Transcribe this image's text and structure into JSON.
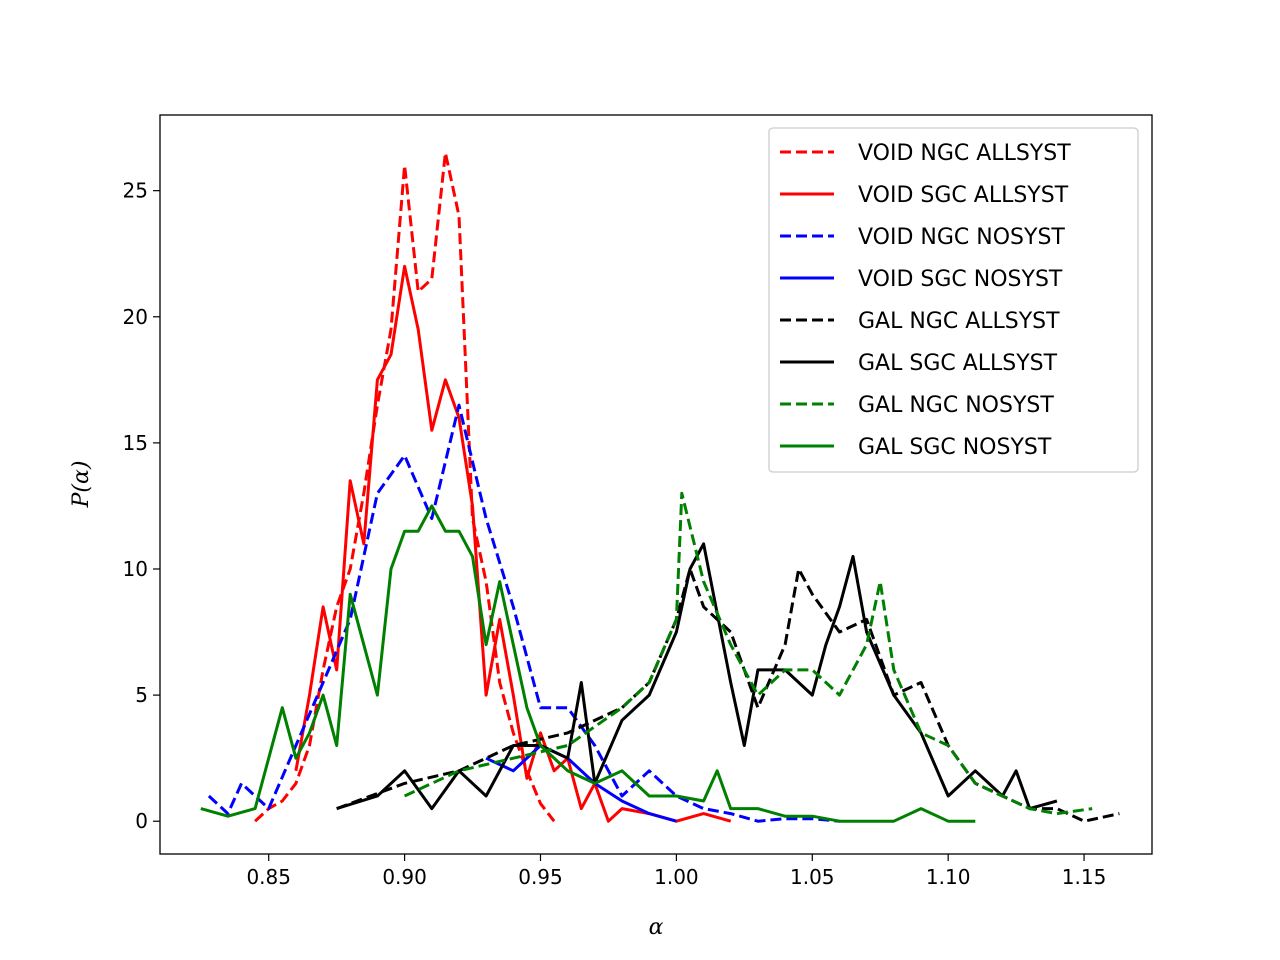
{
  "chart_data": {
    "type": "line",
    "xlabel": "α",
    "ylabel": "P(α)",
    "xlim": [
      0.81,
      1.175
    ],
    "ylim": [
      -1.3,
      28
    ],
    "xticks": [
      0.85,
      0.9,
      0.95,
      1.0,
      1.05,
      1.1,
      1.15
    ],
    "xtick_labels": [
      "0.85",
      "0.90",
      "0.95",
      "1.00",
      "1.05",
      "1.10",
      "1.15"
    ],
    "yticks": [
      0,
      5,
      10,
      15,
      20,
      25
    ],
    "ytick_labels": [
      "0",
      "5",
      "10",
      "15",
      "20",
      "25"
    ],
    "legend_position": "top-right",
    "series": [
      {
        "name": "VOID NGC ALLSYST",
        "color": "#ff0000",
        "dash": true,
        "x": [
          0.845,
          0.85,
          0.855,
          0.86,
          0.865,
          0.87,
          0.875,
          0.88,
          0.885,
          0.89,
          0.895,
          0.9,
          0.905,
          0.91,
          0.915,
          0.92,
          0.925,
          0.93,
          0.935,
          0.94,
          0.945,
          0.95,
          0.955
        ],
        "y": [
          0,
          0.5,
          0.8,
          1.5,
          3,
          6,
          8.5,
          10,
          13,
          16.5,
          19.5,
          26,
          21,
          21.5,
          26.5,
          24,
          12,
          9.5,
          5.5,
          3.5,
          2,
          0.7,
          0
        ]
      },
      {
        "name": "VOID SGC ALLSYST",
        "color": "#ff0000",
        "dash": false,
        "x": [
          0.86,
          0.865,
          0.87,
          0.875,
          0.88,
          0.885,
          0.89,
          0.895,
          0.9,
          0.905,
          0.91,
          0.915,
          0.92,
          0.925,
          0.93,
          0.935,
          0.94,
          0.945,
          0.95,
          0.955,
          0.96,
          0.965,
          0.97,
          0.975,
          0.98,
          0.99,
          1.0,
          1.01,
          1.02
        ],
        "y": [
          2,
          5,
          8.5,
          6,
          13.5,
          11,
          17.5,
          18.5,
          22,
          19.5,
          15.5,
          17.5,
          16,
          12.5,
          5,
          8,
          5,
          1.7,
          3.5,
          2,
          2.5,
          0.5,
          1.5,
          0,
          0.5,
          0.3,
          0,
          0.3,
          0
        ]
      },
      {
        "name": "VOID NGC NOSYST",
        "color": "#0000ff",
        "dash": true,
        "x": [
          0.828,
          0.835,
          0.84,
          0.85,
          0.86,
          0.87,
          0.88,
          0.89,
          0.9,
          0.91,
          0.92,
          0.93,
          0.94,
          0.95,
          0.96,
          0.97,
          0.98,
          0.99,
          1.0,
          1.01,
          1.02,
          1.03,
          1.04,
          1.05,
          1.06
        ],
        "y": [
          1,
          0.3,
          1.5,
          0.5,
          3,
          5.5,
          8,
          13,
          14.5,
          12,
          16.5,
          12,
          8.5,
          4.5,
          4.5,
          3,
          1,
          2,
          1,
          0.5,
          0.3,
          0,
          0.1,
          0.1,
          0
        ]
      },
      {
        "name": "VOID SGC NOSYST",
        "color": "#0000ff",
        "dash": false,
        "x": [
          0.93,
          0.94,
          0.95,
          0.96,
          0.97,
          0.98,
          0.99,
          1.0
        ],
        "y": [
          2.5,
          2,
          3,
          2.5,
          1.5,
          0.8,
          0.3,
          0
        ]
      },
      {
        "name": "GAL NGC ALLSYST",
        "color": "#000000",
        "dash": true,
        "x": [
          0.875,
          0.9,
          0.92,
          0.94,
          0.96,
          0.98,
          0.99,
          1.0,
          1.005,
          1.01,
          1.02,
          1.03,
          1.04,
          1.045,
          1.05,
          1.06,
          1.07,
          1.08,
          1.09,
          1.1,
          1.11,
          1.12,
          1.13,
          1.14,
          1.15,
          1.163
        ],
        "y": [
          0.5,
          1.5,
          2,
          3,
          3.5,
          4.5,
          5.5,
          8,
          10,
          8.5,
          7.5,
          4.5,
          7,
          10,
          9,
          7.5,
          8,
          5,
          5.5,
          3,
          1.5,
          1,
          0.5,
          0.5,
          0,
          0.3
        ]
      },
      {
        "name": "GAL SGC ALLSYST",
        "color": "#000000",
        "dash": false,
        "x": [
          0.875,
          0.89,
          0.9,
          0.91,
          0.92,
          0.93,
          0.94,
          0.95,
          0.96,
          0.965,
          0.97,
          0.98,
          0.99,
          1.0,
          1.005,
          1.01,
          1.02,
          1.025,
          1.03,
          1.04,
          1.05,
          1.055,
          1.06,
          1.065,
          1.07,
          1.08,
          1.09,
          1.1,
          1.11,
          1.12,
          1.125,
          1.13,
          1.14
        ],
        "y": [
          0.5,
          1,
          2,
          0.5,
          2,
          1,
          3,
          3,
          2.5,
          5.5,
          1.5,
          4,
          5,
          7.5,
          10,
          11,
          5.5,
          3,
          6,
          6,
          5,
          7,
          8.5,
          10.5,
          7.5,
          5,
          3.5,
          1,
          2,
          1,
          2,
          0.5,
          0.8
        ]
      },
      {
        "name": "GAL NGC NOSYST",
        "color": "#008000",
        "dash": true,
        "x": [
          0.9,
          0.92,
          0.94,
          0.96,
          0.98,
          0.99,
          1.0,
          1.002,
          1.01,
          1.02,
          1.03,
          1.04,
          1.05,
          1.06,
          1.07,
          1.075,
          1.08,
          1.09,
          1.1,
          1.11,
          1.12,
          1.13,
          1.14,
          1.153
        ],
        "y": [
          1,
          2,
          2.5,
          3,
          4.5,
          5.5,
          8,
          13,
          9.5,
          7,
          5,
          6,
          6,
          5,
          7,
          9.5,
          6,
          3.5,
          3,
          1.5,
          1,
          0.5,
          0.3,
          0.5
        ]
      },
      {
        "name": "GAL SGC NOSYST",
        "color": "#008000",
        "dash": false,
        "x": [
          0.825,
          0.835,
          0.845,
          0.85,
          0.855,
          0.86,
          0.865,
          0.87,
          0.875,
          0.88,
          0.885,
          0.89,
          0.895,
          0.9,
          0.905,
          0.91,
          0.915,
          0.92,
          0.925,
          0.93,
          0.935,
          0.94,
          0.945,
          0.95,
          0.96,
          0.97,
          0.98,
          0.99,
          1.0,
          1.01,
          1.015,
          1.02,
          1.03,
          1.04,
          1.05,
          1.06,
          1.08,
          1.09,
          1.1,
          1.11
        ],
        "y": [
          0.5,
          0.2,
          0.5,
          2.5,
          4.5,
          2.5,
          3.5,
          5,
          3,
          9,
          7,
          5,
          10,
          11.5,
          11.5,
          12.5,
          11.5,
          11.5,
          10.5,
          7,
          9.5,
          7,
          4.5,
          3,
          2,
          1.5,
          2,
          1,
          1,
          0.8,
          2,
          0.5,
          0.5,
          0.2,
          0.2,
          0,
          0,
          0.5,
          0,
          0
        ]
      }
    ]
  }
}
